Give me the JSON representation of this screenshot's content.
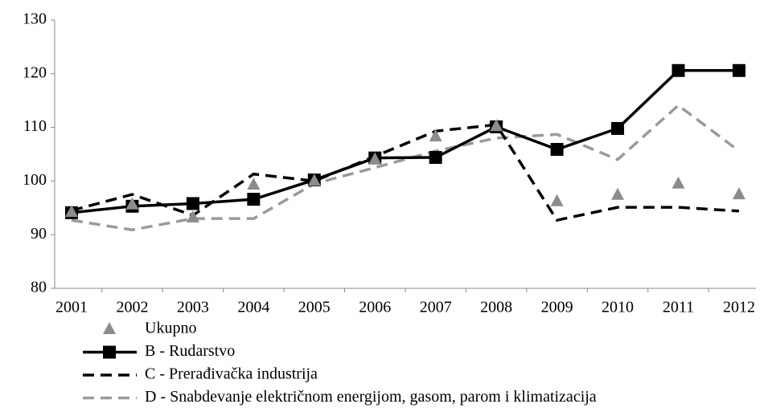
{
  "chart_data": {
    "type": "line",
    "categories": [
      "2001",
      "2002",
      "2003",
      "2004",
      "2005",
      "2006",
      "2007",
      "2008",
      "2009",
      "2010",
      "2011",
      "2012"
    ],
    "series": [
      {
        "name": "Ukupno",
        "color": "#8c8c8c",
        "line": false,
        "marker": "triangle",
        "values": [
          94.2,
          95.6,
          93.2,
          99.3,
          100,
          104,
          108.3,
          110.2,
          96.2,
          97.4,
          99.5,
          97.5
        ]
      },
      {
        "name": "B - Rudarstvo",
        "color": "#000000",
        "line": "solid",
        "marker": "square",
        "values": [
          94.1,
          95.3,
          95.8,
          96.6,
          100.2,
          104.3,
          104.4,
          110.1,
          105.9,
          109.8,
          120.6,
          120.6
        ]
      },
      {
        "name": "C - Prerađivačka industrija",
        "color": "#000000",
        "line": "dashed",
        "marker": null,
        "values": [
          94.5,
          97.5,
          93.6,
          101.3,
          100,
          104.6,
          109.3,
          110.5,
          92.7,
          95.1,
          95.1,
          94.4
        ]
      },
      {
        "name": "D - Snabdevanje električnom energijom, gasom, parom i klimatizacija",
        "color": "#9a9a9a",
        "line": "dashed",
        "marker": null,
        "values": [
          92.7,
          90.9,
          93,
          93,
          99.5,
          102.5,
          105.6,
          108,
          108.7,
          104,
          114.1,
          105.6
        ]
      }
    ],
    "ylim": [
      80,
      130
    ],
    "yticks": [
      80,
      90,
      100,
      110,
      120,
      130
    ],
    "grid": false,
    "legend": "bottom"
  }
}
